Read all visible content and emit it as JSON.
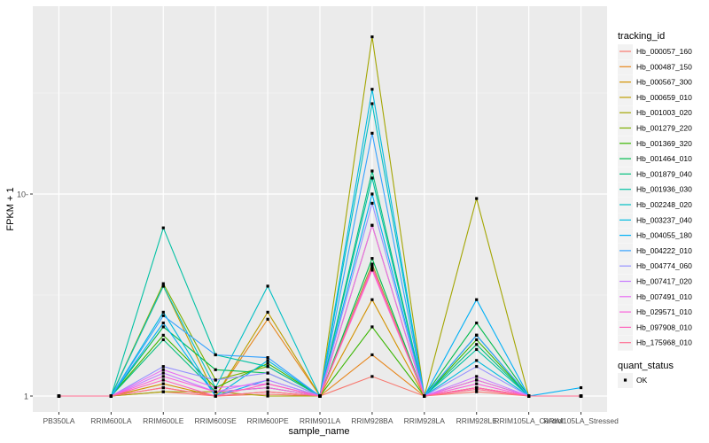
{
  "chart_data": {
    "type": "line",
    "xlabel": "sample_name",
    "ylabel": "FPKM + 1",
    "y_scale": "log10",
    "ylim": [
      0.95,
      75
    ],
    "yticks": [
      1,
      10
    ],
    "ytick_labels": [
      "1",
      "10-"
    ],
    "x": [
      "PB350LA",
      "RRIM600LA",
      "RRIM600LE",
      "RRIM600SE",
      "RRIM600PE",
      "RRIM901LA",
      "RRIM928BA",
      "RRIM928LA",
      "RRIM928LE",
      "RRIM105LA_Control",
      "RRIM105LA_Stressed"
    ],
    "x_tick_labels": [
      "PB350LA",
      "RRIM600LA",
      "RRIM600LE",
      "RRIM600SE",
      "RRIM600PE",
      "RRIM901LA",
      "RRIM928BA",
      "RRIM928LA",
      "RRIM928LE",
      "RRIM105LA_Control",
      "RRIM105LA_Stressed"
    ],
    "background": "#ebebeb",
    "grid": true,
    "legend_placement": "right",
    "legend_title": "tracking_id",
    "shape_legend_title": "quant_status",
    "shape_legend_items": [
      {
        "label": "OK",
        "marker": "square"
      }
    ],
    "series": [
      {
        "name": "Hb_000057_160",
        "color": "#F8766D",
        "values": [
          1.0,
          1.0,
          1.05,
          1.0,
          1.02,
          1.0,
          1.25,
          1.0,
          1.05,
          1.0,
          1.0
        ]
      },
      {
        "name": "Hb_000487_150",
        "color": "#E7861B",
        "values": [
          1.0,
          1.0,
          1.1,
          1.0,
          2.4,
          1.0,
          1.6,
          1.0,
          1.1,
          1.0,
          1.0
        ]
      },
      {
        "name": "Hb_000567_300",
        "color": "#D39200",
        "values": [
          1.0,
          1.0,
          1.15,
          1.0,
          1.05,
          1.0,
          3.0,
          1.0,
          1.1,
          1.0,
          1.0
        ]
      },
      {
        "name": "Hb_000659_010",
        "color": "#BD9D00",
        "values": [
          1.0,
          1.0,
          3.5,
          1.0,
          2.6,
          1.0,
          7.0,
          1.0,
          1.2,
          1.0,
          1.0
        ]
      },
      {
        "name": "Hb_001003_020",
        "color": "#A3A500",
        "values": [
          1.0,
          1.0,
          1.05,
          1.05,
          1.0,
          1.0,
          60.0,
          1.0,
          9.5,
          1.0,
          1.0
        ]
      },
      {
        "name": "Hb_001279_220",
        "color": "#7CAE00",
        "values": [
          1.0,
          1.0,
          3.6,
          1.2,
          1.4,
          1.0,
          4.5,
          1.0,
          2.0,
          1.0,
          1.0
        ]
      },
      {
        "name": "Hb_001369_320",
        "color": "#39B600",
        "values": [
          1.0,
          1.0,
          2.0,
          1.1,
          1.45,
          1.0,
          2.2,
          1.0,
          1.9,
          1.0,
          1.0
        ]
      },
      {
        "name": "Hb_001464_010",
        "color": "#00BB4E",
        "values": [
          1.0,
          1.0,
          2.2,
          1.35,
          1.3,
          1.0,
          4.8,
          1.0,
          2.3,
          1.0,
          1.0
        ]
      },
      {
        "name": "Hb_001879_040",
        "color": "#00BF7D",
        "values": [
          1.0,
          1.0,
          1.9,
          1.05,
          1.1,
          1.0,
          13.0,
          1.0,
          1.8,
          1.0,
          1.0
        ]
      },
      {
        "name": "Hb_001936_030",
        "color": "#00C1A3",
        "values": [
          1.0,
          1.0,
          6.8,
          1.6,
          1.4,
          1.0,
          12.0,
          1.0,
          1.7,
          1.0,
          1.0
        ]
      },
      {
        "name": "Hb_002248_020",
        "color": "#00BFC4",
        "values": [
          1.0,
          1.0,
          3.5,
          1.1,
          3.5,
          1.0,
          28.0,
          1.0,
          2.0,
          1.0,
          1.0
        ]
      },
      {
        "name": "Hb_003237_040",
        "color": "#00BAE0",
        "values": [
          1.0,
          1.0,
          2.6,
          1.0,
          1.5,
          1.0,
          33.0,
          1.0,
          1.5,
          1.0,
          1.0
        ]
      },
      {
        "name": "Hb_004055_180",
        "color": "#00B0F6",
        "values": [
          1.0,
          1.0,
          2.3,
          1.0,
          1.2,
          1.0,
          10.0,
          1.0,
          3.0,
          1.0,
          1.1
        ]
      },
      {
        "name": "Hb_004222_010",
        "color": "#35A2FF",
        "values": [
          1.0,
          1.0,
          2.5,
          1.6,
          1.55,
          1.0,
          20.0,
          1.0,
          2.0,
          1.0,
          1.0
        ]
      },
      {
        "name": "Hb_004774_060",
        "color": "#9590FF",
        "values": [
          1.0,
          1.0,
          1.4,
          1.2,
          1.3,
          1.0,
          9.0,
          1.0,
          1.4,
          1.0,
          1.0
        ]
      },
      {
        "name": "Hb_007417_020",
        "color": "#C77CFF",
        "values": [
          1.0,
          1.0,
          1.3,
          1.05,
          1.2,
          1.0,
          4.4,
          1.0,
          1.25,
          1.0,
          1.0
        ]
      },
      {
        "name": "Hb_007491_010",
        "color": "#E76BF3",
        "values": [
          1.0,
          1.0,
          1.35,
          1.1,
          1.15,
          1.0,
          7.0,
          1.0,
          1.2,
          1.0,
          1.0
        ]
      },
      {
        "name": "Hb_029571_010",
        "color": "#FA62DB",
        "values": [
          1.0,
          1.0,
          1.25,
          1.05,
          1.1,
          1.0,
          4.2,
          1.0,
          1.15,
          1.0,
          1.0
        ]
      },
      {
        "name": "Hb_097908_010",
        "color": "#FF62BC",
        "values": [
          1.0,
          1.0,
          1.2,
          1.0,
          1.15,
          1.0,
          4.3,
          1.0,
          1.1,
          1.0,
          1.0
        ]
      },
      {
        "name": "Hb_175968_010",
        "color": "#FF6C91",
        "values": [
          1.0,
          1.0,
          1.1,
          1.0,
          1.05,
          1.0,
          4.4,
          1.0,
          1.08,
          1.0,
          1.0
        ]
      }
    ]
  }
}
